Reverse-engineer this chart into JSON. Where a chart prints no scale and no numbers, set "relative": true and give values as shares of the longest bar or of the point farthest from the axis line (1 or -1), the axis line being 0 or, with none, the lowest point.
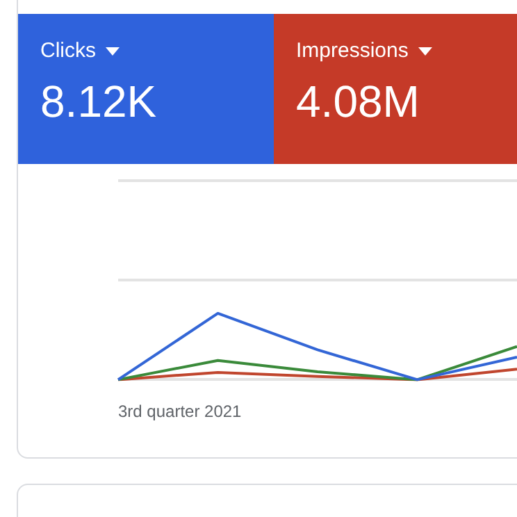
{
  "chart_data": {
    "type": "line",
    "relative": true,
    "annotations": [
      "Clicks",
      "8.12K",
      "Impressions",
      "4.08M"
    ],
    "xlabel": "3rd quarter 2021",
    "categories": [
      null,
      null,
      null,
      null,
      null
    ],
    "marker": "none",
    "series": [
      {
        "color": "#3366d6",
        "values": [
          0,
          1,
          0.45,
          0,
          0.34
        ]
      },
      {
        "color": "#3a8a3a",
        "values": [
          0,
          0.29,
          0.12,
          0,
          0.5
        ]
      },
      {
        "color": "#c0462e",
        "values": [
          0,
          0.11,
          0.05,
          0,
          0.16
        ]
      }
    ]
  }
}
